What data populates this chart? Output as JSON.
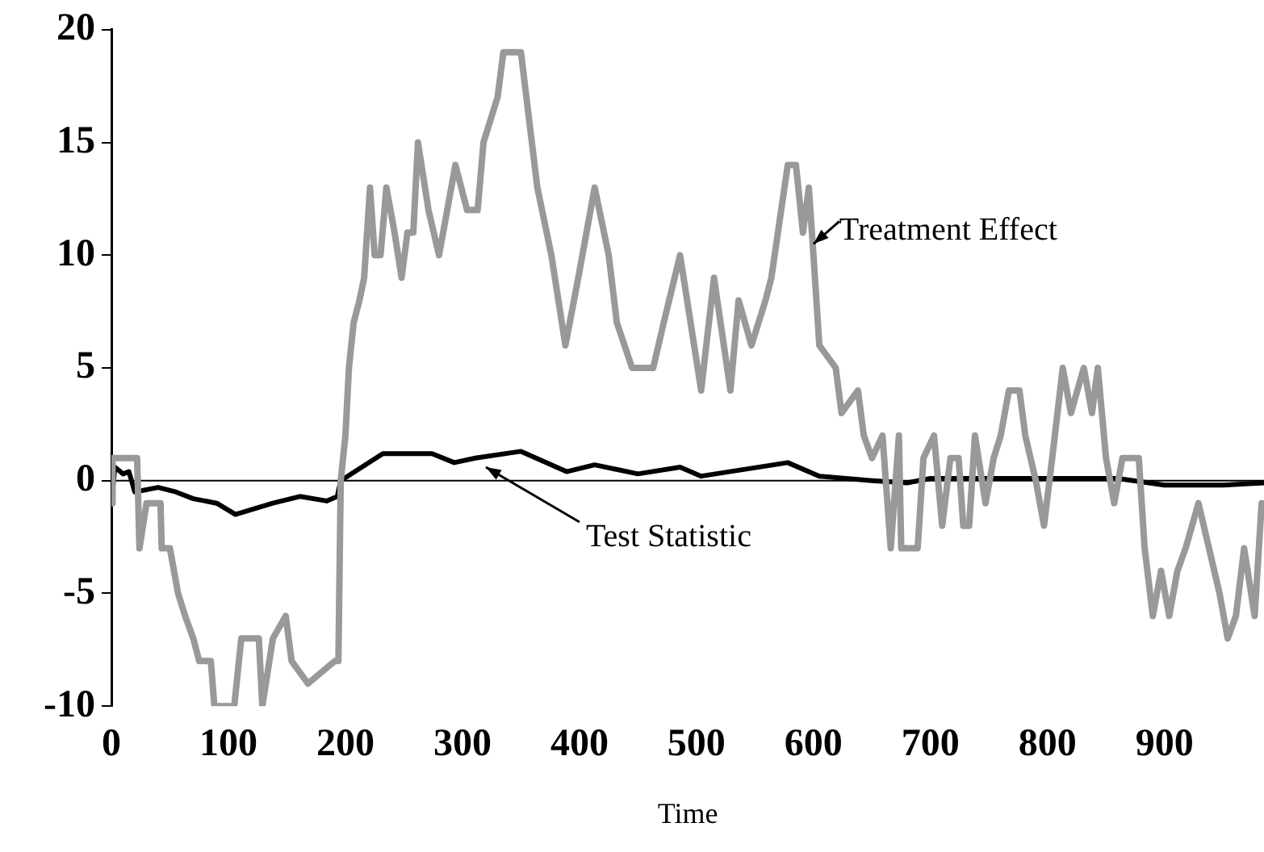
{
  "chart_data": {
    "type": "line",
    "xlabel": "Time",
    "xlim": [
      0,
      985
    ],
    "xticks": [
      0,
      100,
      200,
      300,
      400,
      500,
      600,
      700,
      800,
      900
    ],
    "ylim": [
      -10,
      20
    ],
    "yticks": [
      -10,
      -5,
      0,
      5,
      10,
      15,
      20
    ],
    "grid": false,
    "legend": false,
    "marker": "none",
    "line_style": "solid",
    "ref_lines": [
      {
        "axis": "y",
        "value": 0,
        "color": "#000000"
      }
    ],
    "annotations": [
      {
        "text": "Treatment Effect",
        "x": 600,
        "y": 10.5
      },
      {
        "text": "Test Statistic",
        "x": 320,
        "y": 0.6
      }
    ],
    "series": [
      {
        "color": "#999999",
        "x": [
          0,
          1,
          3,
          22,
          24,
          30,
          42,
          43,
          50,
          57,
          63,
          70,
          75,
          85,
          88,
          105,
          111,
          126,
          129,
          138,
          149,
          154,
          168,
          191,
          194,
          196,
          200,
          203,
          207,
          212,
          216,
          221,
          225,
          230,
          235,
          242,
          248,
          253,
          258,
          262,
          271,
          280,
          294,
          304,
          313,
          318,
          330,
          335,
          350,
          364,
          376,
          388,
          399,
          413,
          425,
          432,
          445,
          463,
          472,
          486,
          495,
          504,
          515,
          529,
          536,
          547,
          559,
          564,
          578,
          585,
          591,
          596,
          600,
          605,
          619,
          624,
          638,
          643,
          650,
          659,
          666,
          673,
          675,
          689,
          694,
          703,
          710,
          717,
          724,
          728,
          733,
          738,
          747,
          754,
          760,
          767,
          776,
          781,
          790,
          797,
          804,
          813,
          820,
          831,
          838,
          843,
          850,
          857,
          864,
          878,
          883,
          890,
          897,
          904,
          911,
          918,
          929,
          938,
          947,
          954,
          961,
          968,
          977,
          983
        ],
        "values": [
          -1,
          1,
          1,
          1,
          -3,
          -1,
          -1,
          -3,
          -3,
          -5,
          -6,
          -7,
          -8,
          -8,
          -10,
          -10,
          -7,
          -7,
          -10,
          -7,
          -6,
          -8,
          -9,
          -8,
          -8,
          0,
          2,
          5,
          7,
          8,
          9,
          13,
          10,
          10,
          13,
          11,
          9,
          11,
          11,
          15,
          12,
          10,
          14,
          12,
          12,
          15,
          17,
          19,
          19,
          13,
          10,
          6,
          9,
          13,
          10,
          7,
          5,
          5,
          7,
          10,
          7,
          4,
          9,
          4,
          8,
          6,
          8,
          9,
          14,
          14,
          11,
          13,
          10,
          6,
          5,
          3,
          4,
          2,
          1,
          2,
          -3,
          2,
          -3,
          -3,
          1,
          2,
          -2,
          1,
          1,
          -2,
          -2,
          2,
          -1,
          1,
          2,
          4,
          4,
          2,
          0,
          -2,
          1,
          5,
          3,
          5,
          3,
          5,
          1,
          -1,
          1,
          1,
          -3,
          -6,
          -4,
          -6,
          -4,
          -3,
          -1,
          -3,
          -5,
          -7,
          -6,
          -3,
          -6,
          -1
        ]
      },
      {
        "color": "#000000",
        "x": [
          0,
          3,
          10,
          15,
          20,
          40,
          55,
          70,
          90,
          106,
          138,
          161,
          184,
          193,
          196,
          232,
          274,
          293,
          311,
          350,
          389,
          413,
          450,
          486,
          504,
          578,
          605,
          650,
          680,
          700,
          780,
          860,
          900,
          950,
          985
        ],
        "values": [
          -1,
          0.6,
          0.3,
          0.4,
          -0.5,
          -0.3,
          -0.5,
          -0.8,
          -1,
          -1.5,
          -1,
          -0.7,
          -0.9,
          -0.7,
          0,
          1.2,
          1.2,
          0.8,
          1,
          1.3,
          0.4,
          0.7,
          0.3,
          0.6,
          0.2,
          0.8,
          0.2,
          0,
          -0.1,
          0.1,
          0.1,
          0.1,
          -0.2,
          -0.2,
          -0.1
        ]
      }
    ]
  }
}
